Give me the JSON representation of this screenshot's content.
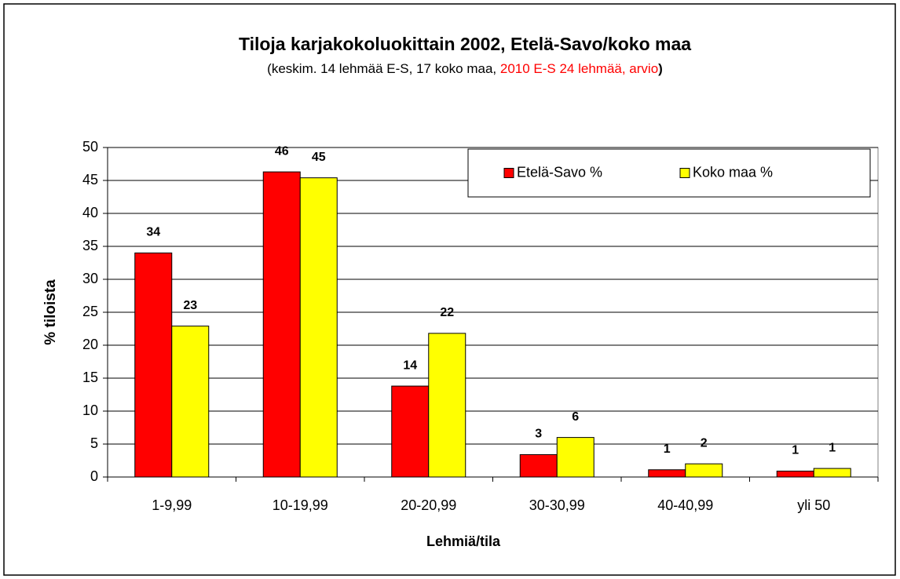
{
  "chart_data": {
    "type": "bar",
    "title": "Tiloja karjakokoluokittain 2002,   Etelä-Savo/koko maa",
    "subtitle": [
      "(keskim. 14 lehmää E-S, 17 koko maa, ",
      "2010 E-S 24 lehmää, arvio",
      ")"
    ],
    "subtitle_colors": [
      "#000000",
      "#ff0000",
      "#000000"
    ],
    "x_label": "Lehmiä/tila",
    "y_label": "% tiloista",
    "categories": [
      "1-9,99",
      "10-19,99",
      "20-20,99",
      "30-30,99",
      "40-40,99",
      "yli 50"
    ],
    "series": [
      {
        "name": "Etelä-Savo %",
        "color": "#ff0000",
        "values": [
          34,
          46.3,
          13.8,
          3.4,
          1.1,
          0.9
        ],
        "value_labels": [
          "34",
          "46",
          "14",
          "3",
          "1",
          "1"
        ]
      },
      {
        "name": "Koko maa %",
        "color": "#ffff00",
        "values": [
          22.9,
          45.4,
          21.8,
          6,
          2,
          1.3
        ],
        "value_labels": [
          "23",
          "45",
          "22",
          "6",
          "2",
          "1"
        ]
      }
    ],
    "ylim": [
      0,
      50
    ],
    "yticks": [
      0,
      5,
      10,
      15,
      20,
      25,
      30,
      35,
      40,
      45,
      50
    ],
    "grid": true,
    "legend": "top-right"
  }
}
